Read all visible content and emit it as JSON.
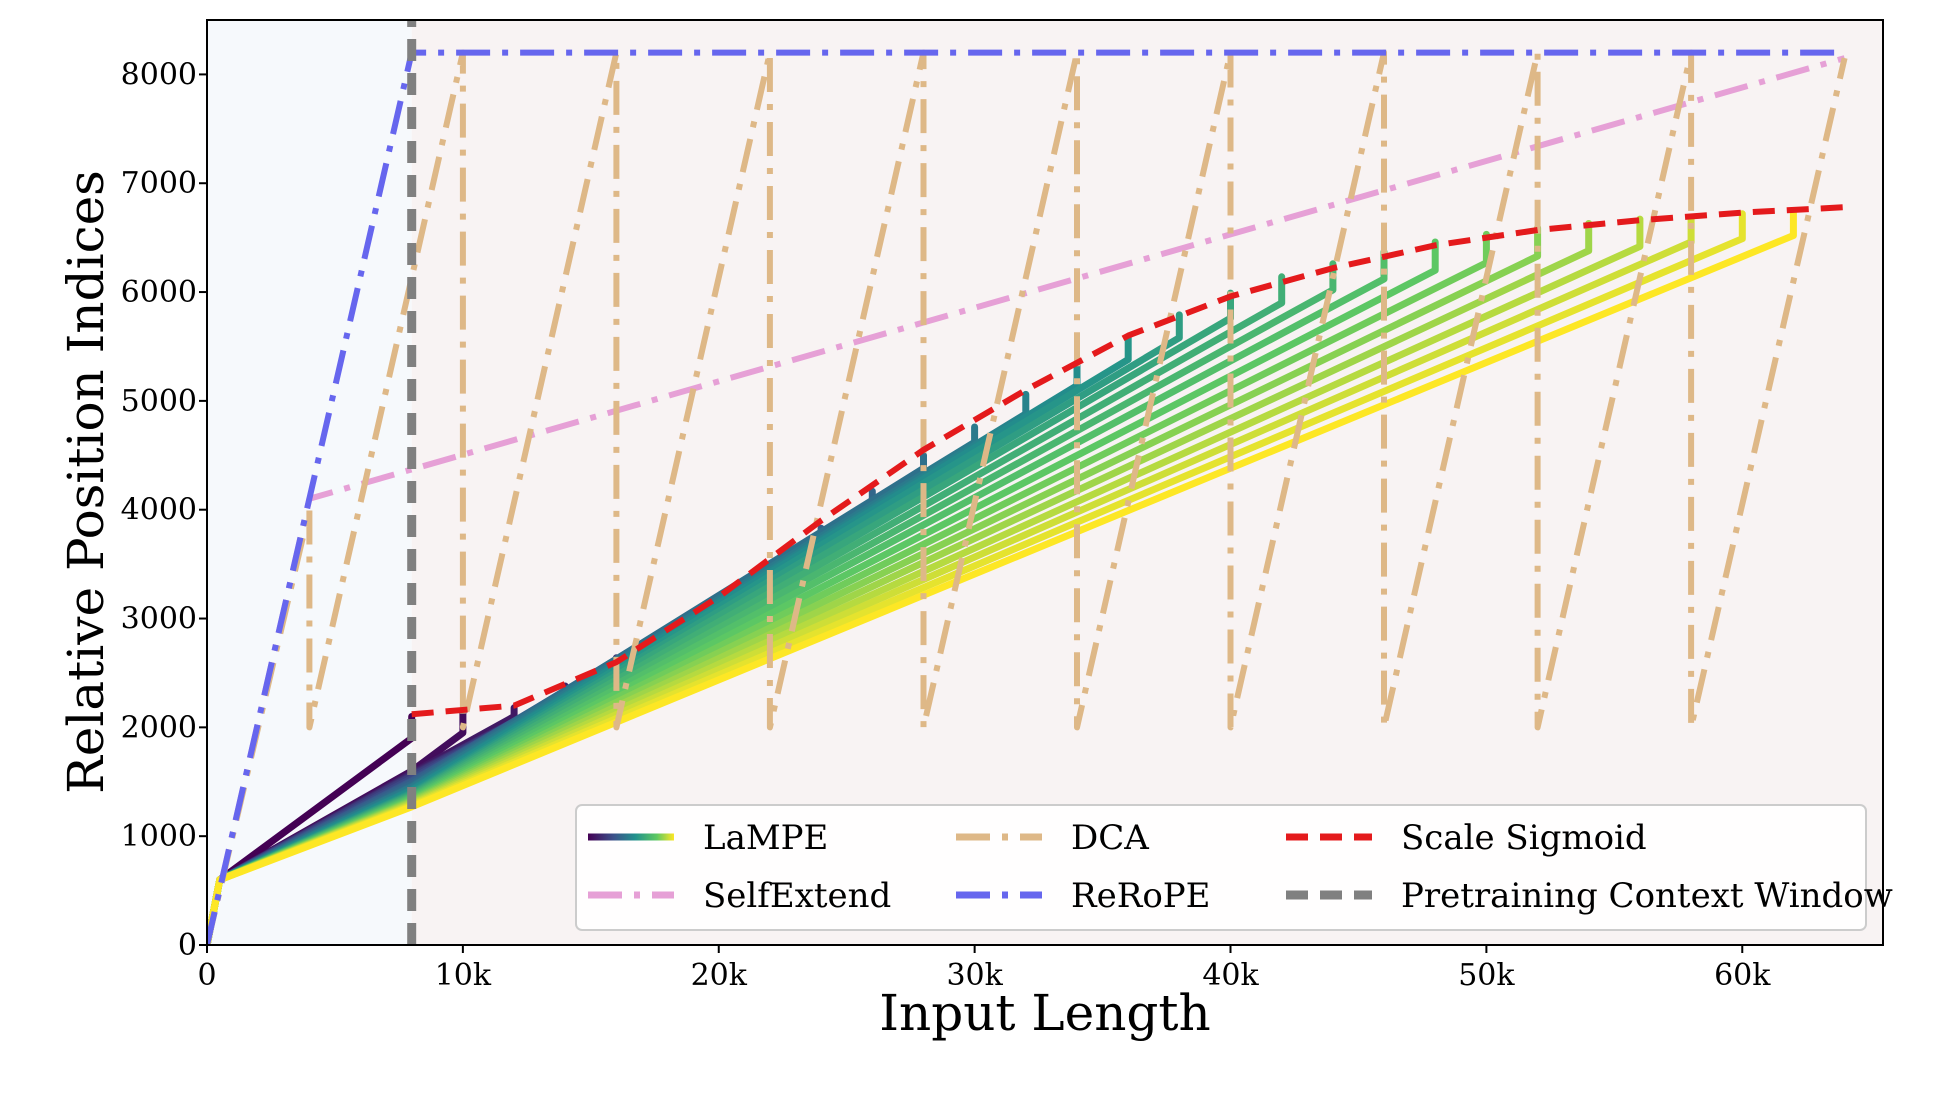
{
  "chart_data": {
    "type": "line",
    "xlabel": "Input Length",
    "ylabel": "Relative Position Indices",
    "xlim": [
      0,
      65500
    ],
    "ylim": [
      0,
      8500
    ],
    "xticks": [
      {
        "value": 0,
        "label": "0"
      },
      {
        "value": 10000,
        "label": "10k"
      },
      {
        "value": 20000,
        "label": "20k"
      },
      {
        "value": 30000,
        "label": "30k"
      },
      {
        "value": 40000,
        "label": "40k"
      },
      {
        "value": 50000,
        "label": "50k"
      },
      {
        "value": 60000,
        "label": "60k"
      }
    ],
    "yticks": [
      {
        "value": 0,
        "label": "0"
      },
      {
        "value": 1000,
        "label": "1000"
      },
      {
        "value": 2000,
        "label": "2000"
      },
      {
        "value": 3000,
        "label": "3000"
      },
      {
        "value": 4000,
        "label": "4000"
      },
      {
        "value": 5000,
        "label": "5000"
      },
      {
        "value": 6000,
        "label": "6000"
      },
      {
        "value": 7000,
        "label": "7000"
      },
      {
        "value": 8000,
        "label": "8000"
      }
    ],
    "regions": [
      {
        "from": 0,
        "to": 8000,
        "color": "#f6f9fc"
      },
      {
        "from": 8000,
        "to": 65500,
        "color": "#f8f3f3"
      }
    ],
    "legend_position": "lower-right",
    "series": [
      {
        "name": "LaMPE",
        "style": "solid-gradient",
        "colormap": [
          "#440154",
          "#3b528b",
          "#21918c",
          "#5ec962",
          "#fde725"
        ],
        "curves": [
          {
            "x": [
              0,
              500,
              8000,
              8000
            ],
            "y": [
              0,
              600,
              1900,
              2100
            ]
          },
          {
            "x": [
              0,
              500,
              8000,
              10000,
              10000
            ],
            "y": [
              0,
              600,
              1600,
              1950,
              2150
            ]
          },
          {
            "x": [
              0,
              500,
              8000,
              12000,
              12000
            ],
            "y": [
              0,
              600,
              1580,
              2100,
              2180
            ]
          },
          {
            "x": [
              0,
              500,
              8000,
              14000,
              14000
            ],
            "y": [
              0,
              600,
              1570,
              2300,
              2380
            ]
          },
          {
            "x": [
              0,
              500,
              8000,
              16000,
              16000
            ],
            "y": [
              0,
              600,
              1560,
              2550,
              2640
            ]
          },
          {
            "x": [
              0,
              500,
              8000,
              18000,
              18000
            ],
            "y": [
              0,
              600,
              1550,
              2800,
              2890
            ]
          },
          {
            "x": [
              0,
              500,
              8000,
              20000,
              20000
            ],
            "y": [
              0,
              600,
              1530,
              3080,
              3170
            ]
          },
          {
            "x": [
              0,
              500,
              8000,
              22000,
              22000
            ],
            "y": [
              0,
              600,
              1510,
              3400,
              3500
            ]
          },
          {
            "x": [
              0,
              500,
              8000,
              24000,
              24000
            ],
            "y": [
              0,
              600,
              1500,
              3730,
              3830
            ]
          },
          {
            "x": [
              0,
              500,
              8000,
              26000,
              26000
            ],
            "y": [
              0,
              600,
              1480,
              4060,
              4170
            ]
          },
          {
            "x": [
              0,
              500,
              8000,
              28000,
              28000
            ],
            "y": [
              0,
              600,
              1460,
              4380,
              4500
            ]
          },
          {
            "x": [
              0,
              500,
              8000,
              30000,
              30000
            ],
            "y": [
              0,
              600,
              1450,
              4620,
              4760
            ]
          },
          {
            "x": [
              0,
              500,
              8000,
              32000,
              32000
            ],
            "y": [
              0,
              600,
              1430,
              4880,
              5060
            ]
          },
          {
            "x": [
              0,
              500,
              8000,
              34000,
              34000
            ],
            "y": [
              0,
              600,
              1420,
              5140,
              5320
            ]
          },
          {
            "x": [
              0,
              500,
              8000,
              36000,
              36000
            ],
            "y": [
              0,
              600,
              1400,
              5380,
              5580
            ]
          },
          {
            "x": [
              0,
              500,
              8000,
              38000,
              38000
            ],
            "y": [
              0,
              600,
              1390,
              5580,
              5790
            ]
          },
          {
            "x": [
              0,
              500,
              8000,
              40000,
              40000
            ],
            "y": [
              0,
              600,
              1380,
              5760,
              5990
            ]
          },
          {
            "x": [
              0,
              500,
              8000,
              42000,
              42000
            ],
            "y": [
              0,
              600,
              1370,
              5900,
              6140
            ]
          },
          {
            "x": [
              0,
              500,
              8000,
              44000,
              44000
            ],
            "y": [
              0,
              600,
              1360,
              6020,
              6260
            ]
          },
          {
            "x": [
              0,
              500,
              8000,
              46000,
              46000
            ],
            "y": [
              0,
              600,
              1350,
              6120,
              6370
            ]
          },
          {
            "x": [
              0,
              500,
              8000,
              48000,
              48000
            ],
            "y": [
              0,
              600,
              1340,
              6200,
              6460
            ]
          },
          {
            "x": [
              0,
              500,
              8000,
              50000,
              50000
            ],
            "y": [
              0,
              600,
              1330,
              6270,
              6530
            ]
          },
          {
            "x": [
              0,
              500,
              8000,
              52000,
              52000
            ],
            "y": [
              0,
              600,
              1320,
              6330,
              6590
            ]
          },
          {
            "x": [
              0,
              500,
              8000,
              54000,
              54000
            ],
            "y": [
              0,
              600,
              1310,
              6380,
              6630
            ]
          },
          {
            "x": [
              0,
              500,
              8000,
              56000,
              56000
            ],
            "y": [
              0,
              600,
              1300,
              6420,
              6670
            ]
          },
          {
            "x": [
              0,
              500,
              8000,
              58000,
              58000
            ],
            "y": [
              0,
              600,
              1290,
              6460,
              6690
            ]
          },
          {
            "x": [
              0,
              500,
              8000,
              60000,
              60000
            ],
            "y": [
              0,
              600,
              1280,
              6490,
              6720
            ]
          },
          {
            "x": [
              0,
              500,
              8000,
              62000,
              62000
            ],
            "y": [
              0,
              600,
              1270,
              6520,
              6740
            ]
          }
        ]
      },
      {
        "name": "DCA",
        "color": "#deb887",
        "style": "dashdot",
        "x": [
          0,
          4000,
          4000,
          10000,
          10000,
          16000,
          16000,
          22000,
          22000,
          28000,
          28000,
          34000,
          34000,
          40000,
          40000,
          46000,
          46000,
          52000,
          52000,
          58000,
          58000,
          64000
        ],
        "y": [
          0,
          4000,
          2000,
          8200,
          2000,
          8200,
          2000,
          8200,
          2000,
          8200,
          2000,
          8200,
          2000,
          8200,
          2000,
          8200,
          2000,
          8200,
          2000,
          8200,
          2000,
          8150
        ]
      },
      {
        "name": "Scale Sigmoid",
        "color": "#e41a1c",
        "style": "dashed",
        "x": [
          8000,
          12000,
          16000,
          20000,
          24000,
          28000,
          32000,
          36000,
          40000,
          44000,
          48000,
          52000,
          56000,
          60000,
          64000
        ],
        "y": [
          2120,
          2200,
          2600,
          3200,
          3900,
          4550,
          5100,
          5600,
          5960,
          6220,
          6430,
          6570,
          6660,
          6730,
          6780
        ]
      },
      {
        "name": "SelfExtend",
        "color": "#e6a0d6",
        "style": "dashdot",
        "x": [
          0,
          4000,
          64000
        ],
        "y": [
          0,
          4100,
          8150
        ]
      },
      {
        "name": "ReRoPE",
        "color": "#6666ee",
        "style": "dashdot",
        "x": [
          0,
          8000,
          64000
        ],
        "y": [
          0,
          8200,
          8200
        ]
      },
      {
        "name": "Pretraining Context Window",
        "color": "#808080",
        "style": "dashed",
        "x": [
          8000,
          8000
        ],
        "y": [
          0,
          8500
        ]
      }
    ],
    "legend": [
      {
        "name": "LaMPE",
        "style": "gradient"
      },
      {
        "name": "DCA",
        "style": "dashdot",
        "color": "#deb887"
      },
      {
        "name": "Scale Sigmoid",
        "style": "dashed",
        "color": "#e41a1c"
      },
      {
        "name": "SelfExtend",
        "style": "dashdot",
        "color": "#e6a0d6"
      },
      {
        "name": "ReRoPE",
        "style": "dashdot",
        "color": "#6666ee"
      },
      {
        "name": "Pretraining Context Window",
        "style": "dashed",
        "color": "#808080"
      }
    ]
  }
}
